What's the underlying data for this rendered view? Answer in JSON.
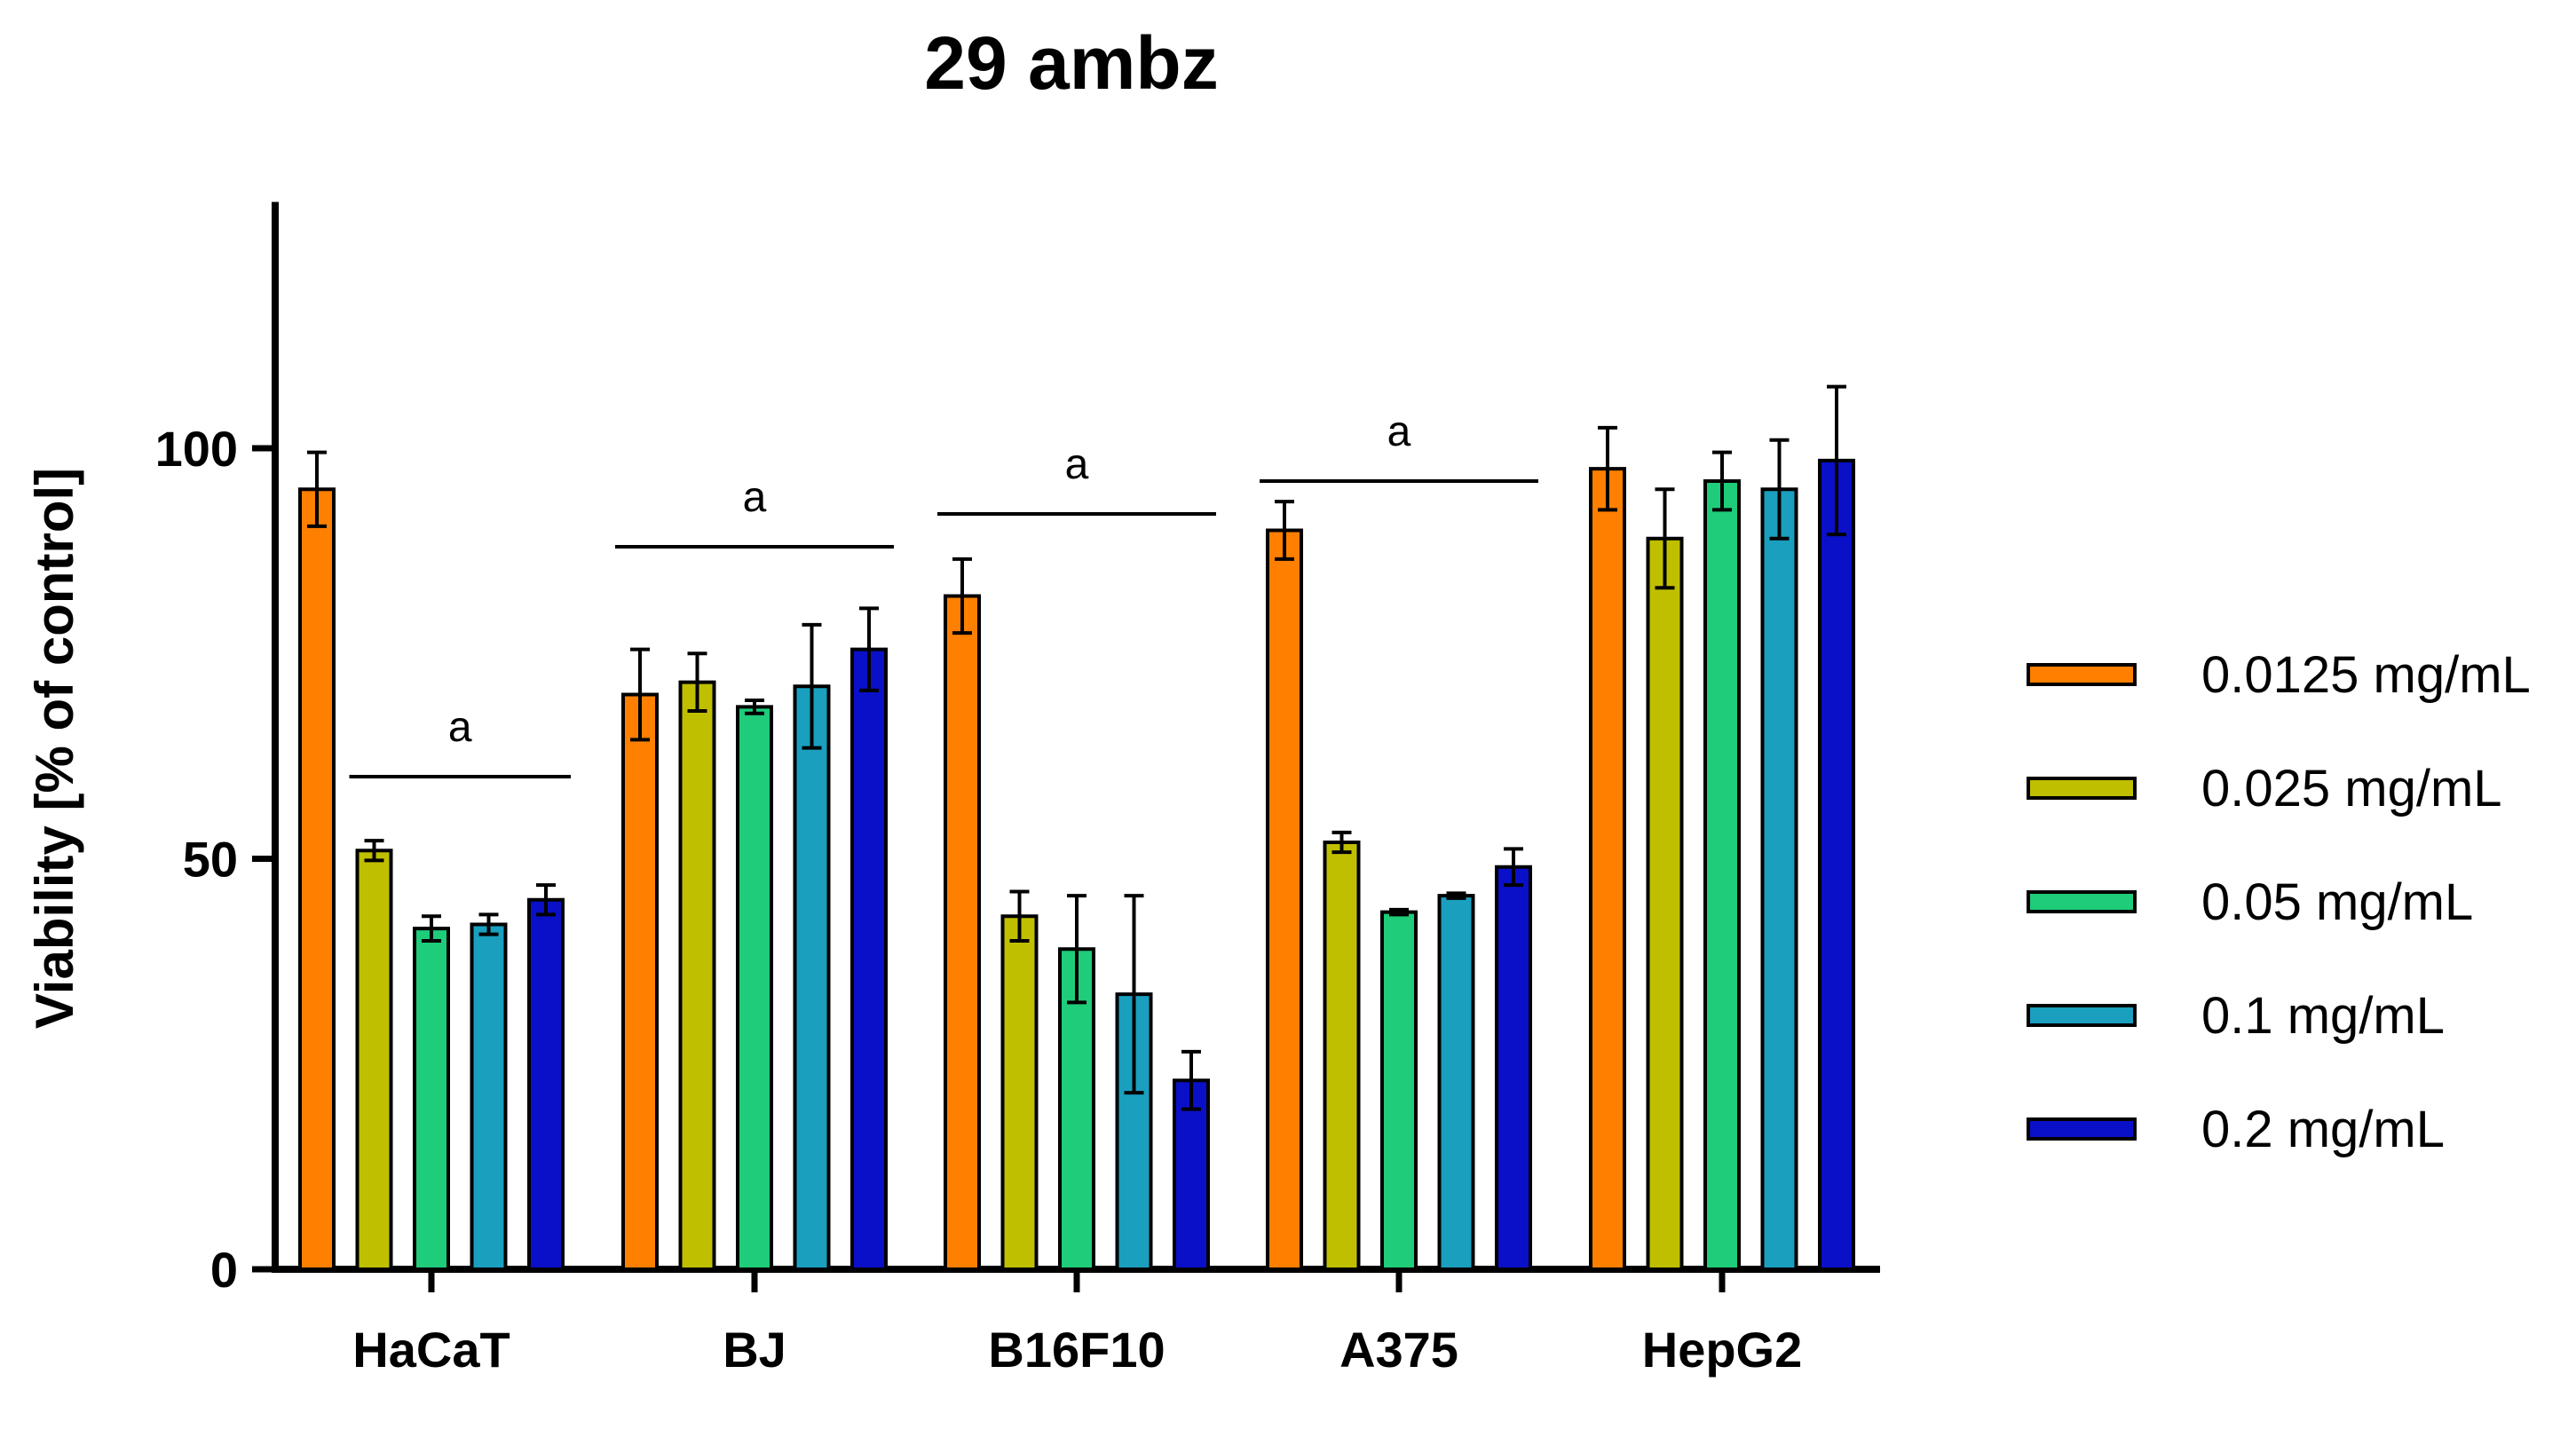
{
  "chart_data": {
    "type": "bar",
    "title": "29 ambz",
    "xlabel": "",
    "ylabel": "Viability [% of control]",
    "ylim": [
      0,
      130
    ],
    "yticks": [
      0,
      50,
      100
    ],
    "categories": [
      "HaCaT",
      "BJ",
      "B16F10",
      "A375",
      "HepG2"
    ],
    "series": [
      {
        "name": "0.0125 mg/mL",
        "color": "#FF7F00",
        "values": [
          95,
          70,
          82,
          90,
          97.5
        ],
        "errors": [
          4.5,
          5.5,
          4.5,
          3.5,
          5
        ]
      },
      {
        "name": "0.025 mg/mL",
        "color": "#BFBF00",
        "values": [
          51,
          71.5,
          43,
          52,
          89
        ],
        "errors": [
          1.2,
          3.5,
          3,
          1.2,
          6
        ]
      },
      {
        "name": "0.05 mg/mL",
        "color": "#1FCC7A",
        "values": [
          41.5,
          68.5,
          39,
          43.5,
          96
        ],
        "errors": [
          1.5,
          0.8,
          6.5,
          0.3,
          3.5
        ]
      },
      {
        "name": "0.1 mg/mL",
        "color": "#1A9FBF",
        "values": [
          42,
          71,
          33.5,
          45.5,
          95
        ],
        "errors": [
          1.2,
          7.5,
          12,
          0.3,
          6
        ]
      },
      {
        "name": "0.2 mg/mL",
        "color": "#0A10C8",
        "values": [
          45,
          75.5,
          23,
          49,
          98.5
        ],
        "errors": [
          1.8,
          5,
          3.5,
          2.2,
          9
        ]
      }
    ],
    "annotations": [
      {
        "text": "a",
        "group": "HaCaT",
        "from_series": 1,
        "to_series": 4,
        "y": 60
      },
      {
        "text": "a",
        "group": "BJ",
        "from_series": 0,
        "to_series": 4,
        "y": 88
      },
      {
        "text": "a",
        "group": "B16F10",
        "from_series": 0,
        "to_series": 4,
        "y": 92
      },
      {
        "text": "a",
        "group": "A375",
        "from_series": 0,
        "to_series": 4,
        "y": 96
      }
    ],
    "legend_position": "right",
    "grid": false
  }
}
